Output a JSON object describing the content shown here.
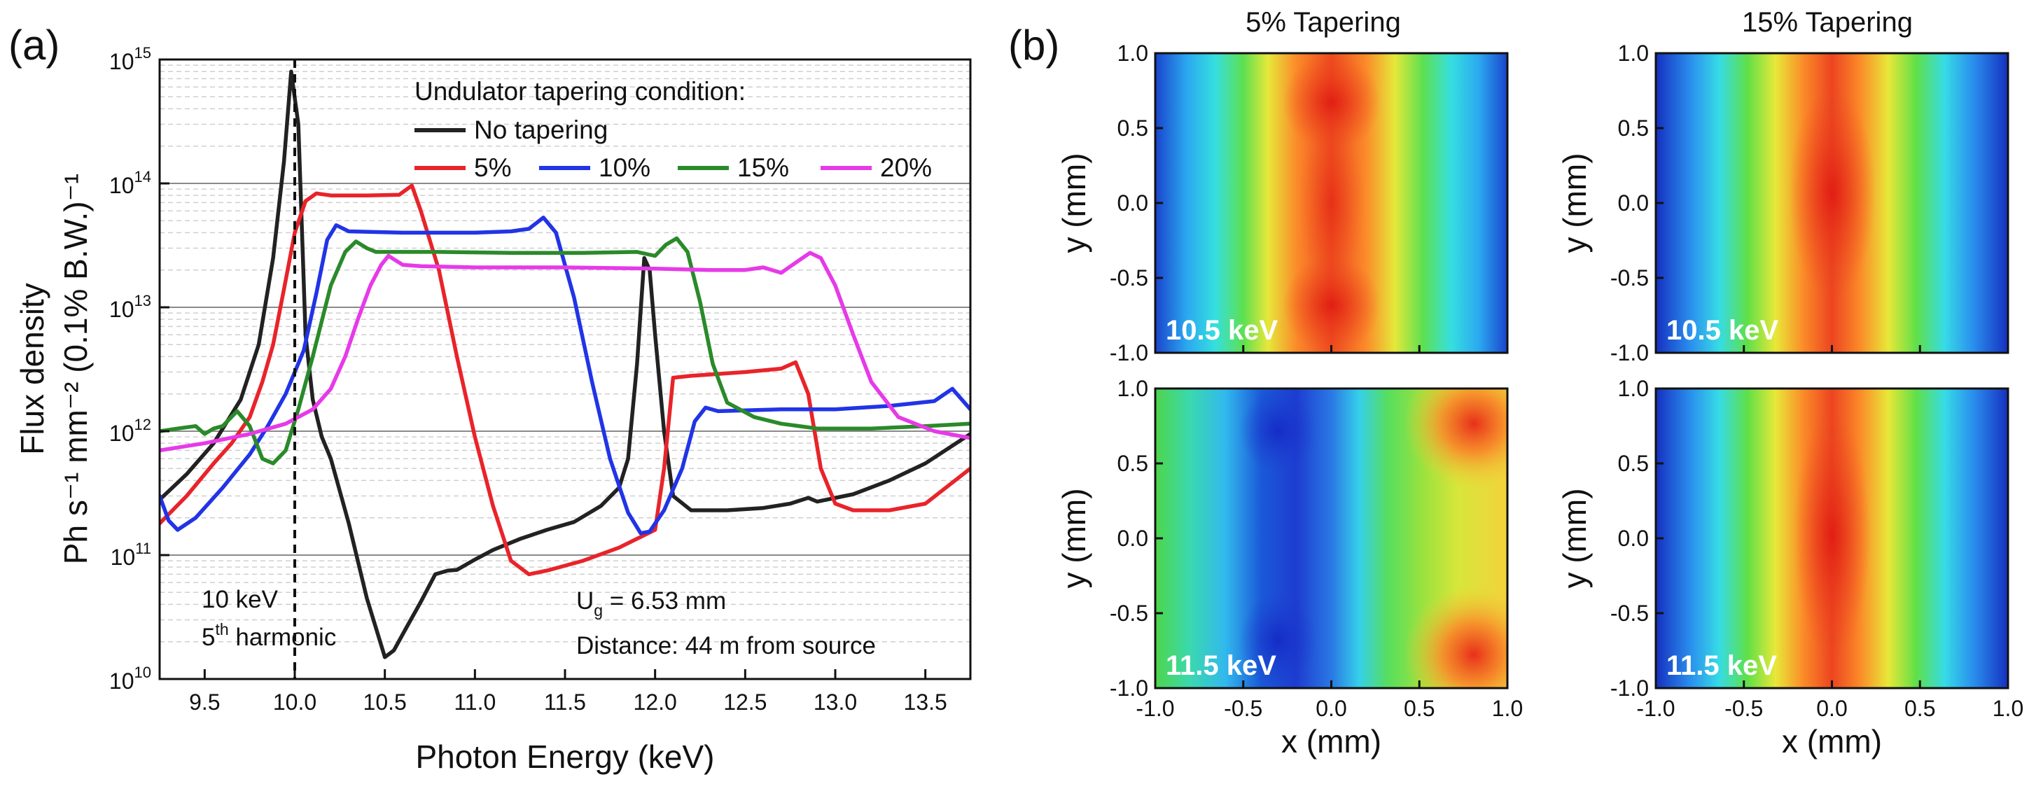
{
  "panels": {
    "a": "(a)",
    "b": "(b)"
  },
  "chart_data": [
    {
      "type": "line",
      "panel": "(a)",
      "xlabel": "Photon Energy (keV)",
      "ylabel_line1": "Flux density",
      "ylabel_line2": "Ph s⁻¹ mm⁻² (0.1% B.W.)⁻¹",
      "y_scale": "log",
      "xlim": [
        9.25,
        13.75
      ],
      "ylim": [
        10000000000.0,
        1000000000000000.0
      ],
      "x_ticks": [
        "9.5",
        "10.0",
        "10.5",
        "11.0",
        "11.5",
        "12.0",
        "12.5",
        "13.0",
        "13.5"
      ],
      "x_tick_values": [
        9.5,
        10.0,
        10.5,
        11.0,
        11.5,
        12.0,
        12.5,
        13.0,
        13.5
      ],
      "y_ticks": [
        {
          "base": "10",
          "exp": "10",
          "value": 10000000000.0
        },
        {
          "base": "10",
          "exp": "11",
          "value": 100000000000.0
        },
        {
          "base": "10",
          "exp": "12",
          "value": 1000000000000.0
        },
        {
          "base": "10",
          "exp": "13",
          "value": 10000000000000.0
        },
        {
          "base": "10",
          "exp": "14",
          "value": 100000000000000.0
        },
        {
          "base": "10",
          "exp": "15",
          "value": 1000000000000000.0
        }
      ],
      "grid": true,
      "legend": {
        "title": "Undulator tapering condition:",
        "placement": "top-right"
      },
      "series": [
        {
          "name": "No tapering",
          "color": "#222222",
          "points": [
            [
              9.25,
              280000000000.0
            ],
            [
              9.4,
              450000000000.0
            ],
            [
              9.55,
              800000000000.0
            ],
            [
              9.7,
              1800000000000.0
            ],
            [
              9.8,
              5000000000000.0
            ],
            [
              9.88,
              25000000000000.0
            ],
            [
              9.94,
              150000000000000.0
            ],
            [
              9.98,
              800000000000000.0
            ],
            [
              10.02,
              300000000000000.0
            ],
            [
              10.06,
              6000000000000.0
            ],
            [
              10.1,
              1800000000000.0
            ],
            [
              10.15,
              900000000000.0
            ],
            [
              10.2,
              600000000000.0
            ],
            [
              10.3,
              180000000000.0
            ],
            [
              10.4,
              45000000000.0
            ],
            [
              10.5,
              15000000000.0
            ],
            [
              10.55,
              17000000000.0
            ],
            [
              10.62,
              26000000000.0
            ],
            [
              10.7,
              42000000000.0
            ],
            [
              10.78,
              70000000000.0
            ],
            [
              10.85,
              75000000000.0
            ],
            [
              10.9,
              76000000000.0
            ],
            [
              11.0,
              92000000000.0
            ],
            [
              11.1,
              110000000000.0
            ],
            [
              11.25,
              135000000000.0
            ],
            [
              11.4,
              160000000000.0
            ],
            [
              11.55,
              185000000000.0
            ],
            [
              11.7,
              250000000000.0
            ],
            [
              11.8,
              350000000000.0
            ],
            [
              11.85,
              600000000000.0
            ],
            [
              11.9,
              3500000000000.0
            ],
            [
              11.94,
              25000000000000.0
            ],
            [
              11.97,
              20000000000000.0
            ],
            [
              12.0,
              6000000000000.0
            ],
            [
              12.05,
              1000000000000.0
            ],
            [
              12.1,
              300000000000.0
            ],
            [
              12.2,
              230000000000.0
            ],
            [
              12.4,
              230000000000.0
            ],
            [
              12.6,
              240000000000.0
            ],
            [
              12.75,
              260000000000.0
            ],
            [
              12.85,
              290000000000.0
            ],
            [
              12.9,
              270000000000.0
            ],
            [
              13.1,
              310000000000.0
            ],
            [
              13.3,
              400000000000.0
            ],
            [
              13.5,
              550000000000.0
            ],
            [
              13.75,
              950000000000.0
            ]
          ]
        },
        {
          "name": "5%",
          "color": "#e8242a",
          "points": [
            [
              9.25,
              180000000000.0
            ],
            [
              9.4,
              300000000000.0
            ],
            [
              9.55,
              550000000000.0
            ],
            [
              9.65,
              800000000000.0
            ],
            [
              9.75,
              1300000000000.0
            ],
            [
              9.82,
              2500000000000.0
            ],
            [
              9.88,
              5000000000000.0
            ],
            [
              9.94,
              14000000000000.0
            ],
            [
              10.0,
              40000000000000.0
            ],
            [
              10.06,
              72000000000000.0
            ],
            [
              10.12,
              83000000000000.0
            ],
            [
              10.2,
              80000000000000.0
            ],
            [
              10.4,
              80000000000000.0
            ],
            [
              10.58,
              81000000000000.0
            ],
            [
              10.65,
              96000000000000.0
            ],
            [
              10.7,
              60000000000000.0
            ],
            [
              10.8,
              20000000000000.0
            ],
            [
              10.9,
              4000000000000.0
            ],
            [
              11.0,
              900000000000.0
            ],
            [
              11.1,
              250000000000.0
            ],
            [
              11.2,
              90000000000.0
            ],
            [
              11.3,
              70000000000.0
            ],
            [
              11.4,
              75000000000.0
            ],
            [
              11.6,
              90000000000.0
            ],
            [
              11.8,
              115000000000.0
            ],
            [
              12.0,
              160000000000.0
            ],
            [
              12.05,
              500000000000.0
            ],
            [
              12.1,
              2700000000000.0
            ],
            [
              12.2,
              2800000000000.0
            ],
            [
              12.5,
              3000000000000.0
            ],
            [
              12.7,
              3200000000000.0
            ],
            [
              12.78,
              3600000000000.0
            ],
            [
              12.85,
              2000000000000.0
            ],
            [
              12.92,
              500000000000.0
            ],
            [
              13.0,
              260000000000.0
            ],
            [
              13.1,
              230000000000.0
            ],
            [
              13.3,
              230000000000.0
            ],
            [
              13.5,
              260000000000.0
            ],
            [
              13.75,
              500000000000.0
            ]
          ]
        },
        {
          "name": "10%",
          "color": "#2134e6",
          "points": [
            [
              9.25,
              300000000000.0
            ],
            [
              9.3,
              190000000000.0
            ],
            [
              9.35,
              160000000000.0
            ],
            [
              9.45,
              200000000000.0
            ],
            [
              9.6,
              350000000000.0
            ],
            [
              9.75,
              650000000000.0
            ],
            [
              9.85,
              1100000000000.0
            ],
            [
              9.95,
              2000000000000.0
            ],
            [
              10.05,
              4500000000000.0
            ],
            [
              10.12,
              13000000000000.0
            ],
            [
              10.18,
              35000000000000.0
            ],
            [
              10.23,
              46000000000000.0
            ],
            [
              10.3,
              41000000000000.0
            ],
            [
              10.6,
              40000000000000.0
            ],
            [
              11.0,
              40000000000000.0
            ],
            [
              11.2,
              41000000000000.0
            ],
            [
              11.3,
              43000000000000.0
            ],
            [
              11.38,
              53000000000000.0
            ],
            [
              11.45,
              40000000000000.0
            ],
            [
              11.55,
              12000000000000.0
            ],
            [
              11.65,
              2500000000000.0
            ],
            [
              11.75,
              600000000000.0
            ],
            [
              11.85,
              220000000000.0
            ],
            [
              11.92,
              150000000000.0
            ],
            [
              11.97,
              155000000000.0
            ],
            [
              12.05,
              230000000000.0
            ],
            [
              12.15,
              500000000000.0
            ],
            [
              12.22,
              1200000000000.0
            ],
            [
              12.28,
              1550000000000.0
            ],
            [
              12.35,
              1450000000000.0
            ],
            [
              12.7,
              1500000000000.0
            ],
            [
              13.0,
              1500000000000.0
            ],
            [
              13.3,
              1600000000000.0
            ],
            [
              13.55,
              1750000000000.0
            ],
            [
              13.65,
              2200000000000.0
            ],
            [
              13.75,
              1500000000000.0
            ]
          ]
        },
        {
          "name": "15%",
          "color": "#2a8a2a",
          "points": [
            [
              9.25,
              1000000000000.0
            ],
            [
              9.35,
              1050000000000.0
            ],
            [
              9.45,
              1100000000000.0
            ],
            [
              9.5,
              950000000000.0
            ],
            [
              9.55,
              1050000000000.0
            ],
            [
              9.6,
              1100000000000.0
            ],
            [
              9.68,
              1450000000000.0
            ],
            [
              9.75,
              1100000000000.0
            ],
            [
              9.82,
              600000000000.0
            ],
            [
              9.88,
              550000000000.0
            ],
            [
              9.95,
              700000000000.0
            ],
            [
              10.02,
              1500000000000.0
            ],
            [
              10.1,
              4000000000000.0
            ],
            [
              10.2,
              15000000000000.0
            ],
            [
              10.28,
              28000000000000.0
            ],
            [
              10.34,
              34000000000000.0
            ],
            [
              10.4,
              30000000000000.0
            ],
            [
              10.45,
              28000000000000.0
            ],
            [
              10.8,
              28000000000000.0
            ],
            [
              11.2,
              27500000000000.0
            ],
            [
              11.6,
              27500000000000.0
            ],
            [
              11.9,
              28000000000000.0
            ],
            [
              12.0,
              26000000000000.0
            ],
            [
              12.06,
              32000000000000.0
            ],
            [
              12.12,
              36000000000000.0
            ],
            [
              12.18,
              28000000000000.0
            ],
            [
              12.25,
              11000000000000.0
            ],
            [
              12.32,
              3500000000000.0
            ],
            [
              12.4,
              1700000000000.0
            ],
            [
              12.55,
              1300000000000.0
            ],
            [
              12.7,
              1150000000000.0
            ],
            [
              12.9,
              1050000000000.0
            ],
            [
              13.2,
              1050000000000.0
            ],
            [
              13.5,
              1100000000000.0
            ],
            [
              13.75,
              1150000000000.0
            ]
          ]
        },
        {
          "name": "20%",
          "color": "#e63ae8",
          "points": [
            [
              9.25,
              700000000000.0
            ],
            [
              9.5,
              800000000000.0
            ],
            [
              9.75,
              950000000000.0
            ],
            [
              9.95,
              1150000000000.0
            ],
            [
              10.1,
              1500000000000.0
            ],
            [
              10.2,
              2200000000000.0
            ],
            [
              10.28,
              4000000000000.0
            ],
            [
              10.35,
              8000000000000.0
            ],
            [
              10.42,
              15000000000000.0
            ],
            [
              10.48,
              22000000000000.0
            ],
            [
              10.52,
              26000000000000.0
            ],
            [
              10.6,
              22000000000000.0
            ],
            [
              10.7,
              21500000000000.0
            ],
            [
              11.0,
              21000000000000.0
            ],
            [
              11.5,
              21000000000000.0
            ],
            [
              12.0,
              20500000000000.0
            ],
            [
              12.3,
              20000000000000.0
            ],
            [
              12.5,
              20000000000000.0
            ],
            [
              12.6,
              21000000000000.0
            ],
            [
              12.7,
              19000000000000.0
            ],
            [
              12.8,
              24000000000000.0
            ],
            [
              12.86,
              27500000000000.0
            ],
            [
              12.92,
              25000000000000.0
            ],
            [
              13.0,
              15000000000000.0
            ],
            [
              13.1,
              6000000000000.0
            ],
            [
              13.2,
              2500000000000.0
            ],
            [
              13.35,
              1300000000000.0
            ],
            [
              13.55,
              1000000000000.0
            ],
            [
              13.75,
              880000000000.0
            ]
          ]
        }
      ],
      "annotations": {
        "marker_label_1": "10 keV",
        "marker_label_2_base": "5",
        "marker_label_2_sup": "th",
        "marker_label_2_rest": " harmonic",
        "marker_x": 10.0,
        "param_line_1_base": "U",
        "param_line_1_sub": "g",
        "param_line_1_rest": " = 6.53 mm",
        "param_line_2": "Distance: 44 m from source"
      }
    },
    {
      "type": "heatmap",
      "panel": "(b)",
      "xlabel": "x (mm)",
      "ylabel": "y (mm)",
      "xlim": [
        -1.0,
        1.0
      ],
      "ylim": [
        -1.0,
        1.0
      ],
      "x_ticks": [
        "-1.0",
        "-0.5",
        "0.0",
        "0.5",
        "1.0"
      ],
      "y_ticks": [
        "-1.0",
        "-0.5",
        "0.0",
        "0.5",
        "1.0"
      ],
      "tick_values": [
        -1.0,
        -0.5,
        0.0,
        0.5,
        1.0
      ],
      "colormap": "rainbow (blue-cyan-green-yellow-red)",
      "column_titles": [
        "5% Tapering",
        "15% Tapering"
      ],
      "maps": [
        {
          "column": "5% Tapering",
          "energy_label": "10.5 keV",
          "pattern": "centered band, broad core"
        },
        {
          "column": "15% Tapering",
          "energy_label": "10.5 keV",
          "pattern": "centered band, oval core"
        },
        {
          "column": "5% Tapering",
          "energy_label": "11.5 keV",
          "pattern": "off-axis hot spots at right corners"
        },
        {
          "column": "15% Tapering",
          "energy_label": "11.5 keV",
          "pattern": "centered band, elongated core"
        }
      ]
    }
  ]
}
